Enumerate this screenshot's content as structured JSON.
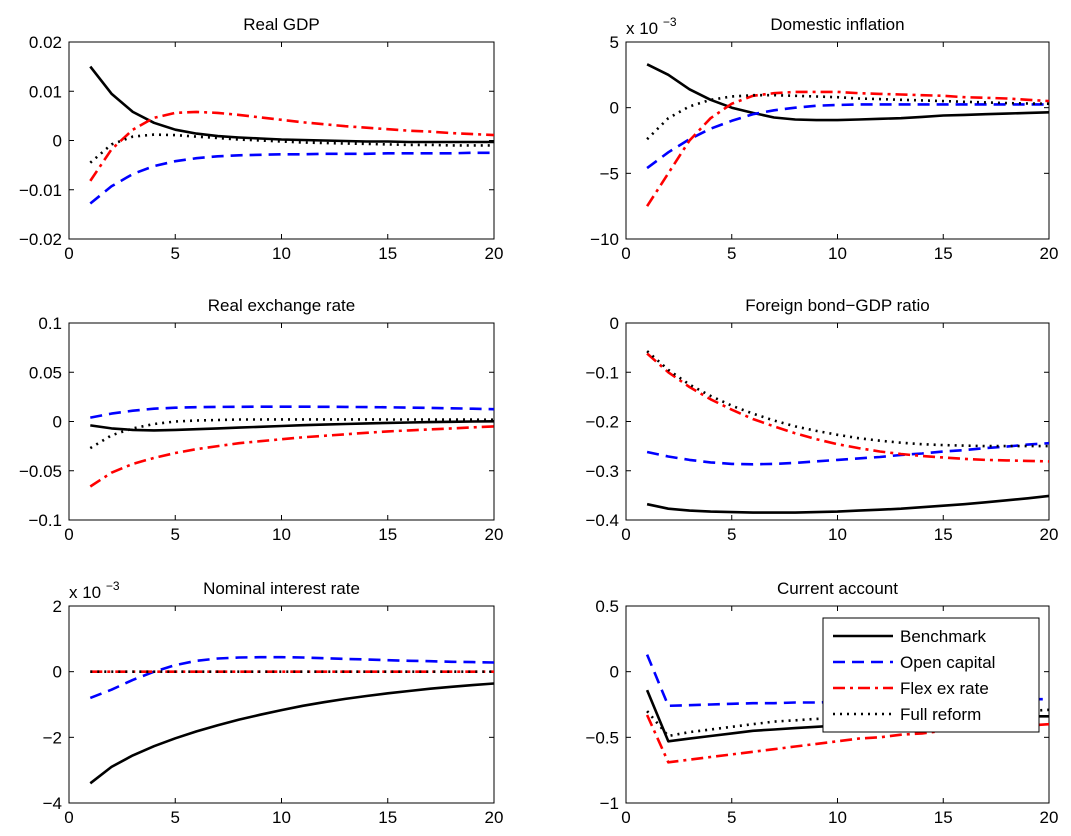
{
  "chart_data": [
    {
      "type": "line",
      "title": "Real GDP",
      "xlim": [
        0,
        20
      ],
      "ylim": [
        -0.02,
        0.02
      ],
      "xticks": [
        0,
        5,
        10,
        15,
        20
      ],
      "yticks": [
        -0.02,
        -0.01,
        0,
        0.01,
        0.02
      ],
      "xtick_labels": [
        "0",
        "5",
        "10",
        "15",
        "20"
      ],
      "ytick_labels": [
        "−0.02",
        "−0.01",
        "0",
        "0.01",
        "0.02"
      ],
      "exponent": "",
      "x": [
        1,
        2,
        3,
        4,
        5,
        6,
        7,
        8,
        9,
        10,
        11,
        12,
        13,
        14,
        15,
        16,
        17,
        18,
        19,
        20
      ],
      "series": [
        {
          "name": "Benchmark",
          "values": [
            0.015,
            0.0095,
            0.0058,
            0.0036,
            0.0022,
            0.0014,
            0.0009,
            0.0006,
            0.0004,
            0.0002,
            0.0001,
            0.0,
            -0.0001,
            -0.0002,
            -0.0002,
            -0.0003,
            -0.0003,
            -0.0003,
            -0.0003,
            -0.0003
          ]
        },
        {
          "name": "Open capital",
          "values": [
            -0.0128,
            -0.0093,
            -0.0068,
            -0.0052,
            -0.0042,
            -0.0036,
            -0.0032,
            -0.003,
            -0.0029,
            -0.0028,
            -0.0028,
            -0.0027,
            -0.0027,
            -0.0027,
            -0.0026,
            -0.0026,
            -0.0026,
            -0.0026,
            -0.0025,
            -0.0025
          ]
        },
        {
          "name": "Flex ex rate",
          "values": [
            -0.0082,
            -0.0018,
            0.0022,
            0.0046,
            0.0056,
            0.0058,
            0.0056,
            0.0052,
            0.0047,
            0.0042,
            0.0037,
            0.0033,
            0.0029,
            0.0026,
            0.0023,
            0.002,
            0.0018,
            0.0015,
            0.0013,
            0.0011
          ]
        },
        {
          "name": "Full reform",
          "values": [
            -0.0045,
            -0.0008,
            0.0008,
            0.0012,
            0.0011,
            0.0008,
            0.0005,
            0.0002,
            0.0,
            -0.0002,
            -0.0004,
            -0.0005,
            -0.0006,
            -0.0007,
            -0.0008,
            -0.0009,
            -0.0009,
            -0.001,
            -0.001,
            -0.001
          ]
        }
      ]
    },
    {
      "type": "line",
      "title": "Domestic inflation",
      "xlim": [
        0,
        20
      ],
      "ylim": [
        -10,
        5
      ],
      "xticks": [
        0,
        5,
        10,
        15,
        20
      ],
      "yticks": [
        -10,
        -5,
        0,
        5
      ],
      "xtick_labels": [
        "0",
        "5",
        "10",
        "15",
        "20"
      ],
      "ytick_labels": [
        "−10",
        "−5",
        "0",
        "5"
      ],
      "exponent": "x 10",
      "exponent_power": "−3",
      "x": [
        1,
        2,
        3,
        4,
        5,
        6,
        7,
        8,
        9,
        10,
        11,
        12,
        13,
        14,
        15,
        16,
        17,
        18,
        19,
        20
      ],
      "series": [
        {
          "name": "Benchmark",
          "values": [
            3.3,
            2.5,
            1.4,
            0.6,
            0.0,
            -0.4,
            -0.75,
            -0.9,
            -0.95,
            -0.95,
            -0.9,
            -0.85,
            -0.8,
            -0.7,
            -0.6,
            -0.55,
            -0.5,
            -0.45,
            -0.4,
            -0.35
          ]
        },
        {
          "name": "Open capital",
          "values": [
            -4.6,
            -3.4,
            -2.4,
            -1.6,
            -1.0,
            -0.5,
            -0.2,
            0.0,
            0.15,
            0.2,
            0.25,
            0.25,
            0.25,
            0.25,
            0.25,
            0.25,
            0.25,
            0.25,
            0.25,
            0.25
          ]
        },
        {
          "name": "Flex ex rate",
          "values": [
            -7.5,
            -5.0,
            -2.5,
            -0.8,
            0.3,
            0.9,
            1.1,
            1.2,
            1.2,
            1.2,
            1.1,
            1.05,
            1.0,
            0.95,
            0.9,
            0.8,
            0.75,
            0.7,
            0.6,
            0.5
          ]
        },
        {
          "name": "Full reform",
          "values": [
            -2.4,
            -0.8,
            0.1,
            0.6,
            0.85,
            0.95,
            0.95,
            0.9,
            0.85,
            0.8,
            0.7,
            0.65,
            0.6,
            0.55,
            0.5,
            0.45,
            0.4,
            0.35,
            0.32,
            0.3
          ]
        }
      ]
    },
    {
      "type": "line",
      "title": "Real exchange rate",
      "xlim": [
        0,
        20
      ],
      "ylim": [
        -0.1,
        0.1
      ],
      "xticks": [
        0,
        5,
        10,
        15,
        20
      ],
      "yticks": [
        -0.1,
        -0.05,
        0,
        0.05,
        0.1
      ],
      "xtick_labels": [
        "0",
        "5",
        "10",
        "15",
        "20"
      ],
      "ytick_labels": [
        "−0.1",
        "−0.05",
        "0",
        "0.05",
        "0.1"
      ],
      "exponent": "",
      "x": [
        1,
        2,
        3,
        4,
        5,
        6,
        7,
        8,
        9,
        10,
        11,
        12,
        13,
        14,
        15,
        16,
        17,
        18,
        19,
        20
      ],
      "series": [
        {
          "name": "Benchmark",
          "values": [
            -0.004,
            -0.007,
            -0.0085,
            -0.009,
            -0.0085,
            -0.0078,
            -0.007,
            -0.0062,
            -0.0054,
            -0.0046,
            -0.0038,
            -0.0031,
            -0.0025,
            -0.0019,
            -0.0014,
            -0.001,
            -0.0006,
            -0.0003,
            0.0,
            0.0002
          ]
        },
        {
          "name": "Open capital",
          "values": [
            0.004,
            0.008,
            0.011,
            0.013,
            0.014,
            0.0145,
            0.0148,
            0.0149,
            0.015,
            0.015,
            0.015,
            0.0149,
            0.0148,
            0.0146,
            0.0144,
            0.0141,
            0.0138,
            0.0134,
            0.013,
            0.0125
          ]
        },
        {
          "name": "Flex ex rate",
          "values": [
            -0.066,
            -0.052,
            -0.043,
            -0.037,
            -0.032,
            -0.028,
            -0.025,
            -0.022,
            -0.02,
            -0.018,
            -0.016,
            -0.0145,
            -0.013,
            -0.0115,
            -0.01,
            -0.009,
            -0.008,
            -0.007,
            -0.006,
            -0.005
          ]
        },
        {
          "name": "Full reform",
          "values": [
            -0.027,
            -0.014,
            -0.007,
            -0.0025,
            0.0,
            0.001,
            0.0015,
            0.002,
            0.002,
            0.0021,
            0.0021,
            0.0021,
            0.0021,
            0.0021,
            0.002,
            0.002,
            0.002,
            0.0019,
            0.0019,
            0.0018
          ]
        }
      ]
    },
    {
      "type": "line",
      "title": "Foreign bond−GDP ratio",
      "xlim": [
        0,
        20
      ],
      "ylim": [
        -0.4,
        0
      ],
      "xticks": [
        0,
        5,
        10,
        15,
        20
      ],
      "yticks": [
        -0.4,
        -0.3,
        -0.2,
        -0.1,
        0
      ],
      "xtick_labels": [
        "0",
        "5",
        "10",
        "15",
        "20"
      ],
      "ytick_labels": [
        "−0.4",
        "−0.3",
        "−0.2",
        "−0.1",
        "0"
      ],
      "exponent": "",
      "x": [
        1,
        2,
        3,
        4,
        5,
        6,
        7,
        8,
        9,
        10,
        11,
        12,
        13,
        14,
        15,
        16,
        17,
        18,
        19,
        20
      ],
      "series": [
        {
          "name": "Benchmark",
          "values": [
            -0.368,
            -0.377,
            -0.381,
            -0.383,
            -0.384,
            -0.385,
            -0.385,
            -0.385,
            -0.384,
            -0.383,
            -0.381,
            -0.379,
            -0.377,
            -0.374,
            -0.371,
            -0.368,
            -0.364,
            -0.36,
            -0.356,
            -0.351
          ]
        },
        {
          "name": "Open capital",
          "values": [
            -0.262,
            -0.271,
            -0.278,
            -0.283,
            -0.286,
            -0.287,
            -0.286,
            -0.284,
            -0.281,
            -0.278,
            -0.275,
            -0.272,
            -0.268,
            -0.265,
            -0.261,
            -0.258,
            -0.254,
            -0.251,
            -0.247,
            -0.244
          ]
        },
        {
          "name": "Flex ex rate",
          "values": [
            -0.062,
            -0.1,
            -0.13,
            -0.155,
            -0.176,
            -0.195,
            -0.21,
            -0.224,
            -0.236,
            -0.246,
            -0.254,
            -0.261,
            -0.266,
            -0.27,
            -0.273,
            -0.276,
            -0.278,
            -0.279,
            -0.28,
            -0.281
          ]
        },
        {
          "name": "Full reform",
          "values": [
            -0.057,
            -0.095,
            -0.125,
            -0.148,
            -0.168,
            -0.184,
            -0.198,
            -0.21,
            -0.219,
            -0.227,
            -0.234,
            -0.239,
            -0.243,
            -0.246,
            -0.248,
            -0.249,
            -0.25,
            -0.25,
            -0.25,
            -0.25
          ]
        }
      ]
    },
    {
      "type": "line",
      "title": "Nominal interest rate",
      "xlim": [
        0,
        20
      ],
      "ylim": [
        -4,
        2
      ],
      "xticks": [
        0,
        5,
        10,
        15,
        20
      ],
      "yticks": [
        -4,
        -2,
        0,
        2
      ],
      "xtick_labels": [
        "0",
        "5",
        "10",
        "15",
        "20"
      ],
      "ytick_labels": [
        "−4",
        "−2",
        "0",
        "2"
      ],
      "exponent": "x 10",
      "exponent_power": "−3",
      "x": [
        1,
        2,
        3,
        4,
        5,
        6,
        7,
        8,
        9,
        10,
        11,
        12,
        13,
        14,
        15,
        16,
        17,
        18,
        19,
        20
      ],
      "series": [
        {
          "name": "Benchmark",
          "values": [
            -3.4,
            -2.9,
            -2.55,
            -2.27,
            -2.03,
            -1.82,
            -1.63,
            -1.46,
            -1.31,
            -1.17,
            -1.04,
            -0.93,
            -0.83,
            -0.74,
            -0.66,
            -0.59,
            -0.52,
            -0.46,
            -0.41,
            -0.36
          ]
        },
        {
          "name": "Open capital",
          "values": [
            -0.8,
            -0.55,
            -0.25,
            0.0,
            0.2,
            0.33,
            0.4,
            0.43,
            0.44,
            0.44,
            0.43,
            0.41,
            0.39,
            0.37,
            0.35,
            0.33,
            0.32,
            0.3,
            0.29,
            0.28
          ]
        },
        {
          "name": "Flex ex rate",
          "values": [
            0,
            0,
            0,
            0,
            0,
            0,
            0,
            0,
            0,
            0,
            0,
            0,
            0,
            0,
            0,
            0,
            0,
            0,
            0,
            0
          ]
        },
        {
          "name": "Full reform",
          "values": [
            0,
            0,
            0,
            0,
            0,
            0,
            0,
            0,
            0,
            0,
            0,
            0,
            0,
            0,
            0,
            0,
            0,
            0,
            0,
            0
          ]
        }
      ]
    },
    {
      "type": "line",
      "title": "Current account",
      "xlim": [
        0,
        20
      ],
      "ylim": [
        -1,
        0.5
      ],
      "xticks": [
        0,
        5,
        10,
        15,
        20
      ],
      "yticks": [
        -1,
        -0.5,
        0,
        0.5
      ],
      "xtick_labels": [
        "0",
        "5",
        "10",
        "15",
        "20"
      ],
      "ytick_labels": [
        "−1",
        "−0.5",
        "0",
        "0.5"
      ],
      "exponent": "",
      "legend": {
        "position": "top-right",
        "entries": [
          "Benchmark",
          "Open capital",
          "Flex ex rate",
          "Full reform"
        ]
      },
      "x": [
        1,
        2,
        3,
        4,
        5,
        6,
        7,
        8,
        9,
        10,
        11,
        12,
        13,
        14,
        15,
        16,
        17,
        18,
        19,
        20
      ],
      "series": [
        {
          "name": "Benchmark",
          "values": [
            -0.14,
            -0.53,
            -0.51,
            -0.49,
            -0.47,
            -0.45,
            -0.44,
            -0.43,
            -0.42,
            -0.41,
            -0.4,
            -0.39,
            -0.38,
            -0.37,
            -0.37,
            -0.36,
            -0.35,
            -0.35,
            -0.34,
            -0.34
          ]
        },
        {
          "name": "Open capital",
          "values": [
            0.13,
            -0.26,
            -0.255,
            -0.25,
            -0.245,
            -0.24,
            -0.24,
            -0.235,
            -0.235,
            -0.23,
            -0.23,
            -0.225,
            -0.225,
            -0.22,
            -0.22,
            -0.22,
            -0.215,
            -0.215,
            -0.21,
            -0.21
          ]
        },
        {
          "name": "Flex ex rate",
          "values": [
            -0.33,
            -0.69,
            -0.67,
            -0.65,
            -0.63,
            -0.61,
            -0.59,
            -0.57,
            -0.55,
            -0.53,
            -0.51,
            -0.5,
            -0.48,
            -0.47,
            -0.45,
            -0.44,
            -0.43,
            -0.42,
            -0.41,
            -0.4
          ]
        },
        {
          "name": "Full reform",
          "values": [
            -0.3,
            -0.49,
            -0.46,
            -0.44,
            -0.42,
            -0.4,
            -0.38,
            -0.37,
            -0.36,
            -0.35,
            -0.34,
            -0.33,
            -0.32,
            -0.32,
            -0.31,
            -0.31,
            -0.3,
            -0.3,
            -0.3,
            -0.29
          ]
        }
      ]
    }
  ],
  "series_styles": [
    {
      "name": "Benchmark",
      "color": "#000000",
      "dash": "none"
    },
    {
      "name": "Open capital",
      "color": "#0000ff",
      "dash": "12,7"
    },
    {
      "name": "Flex ex rate",
      "color": "#ff0000",
      "dash": "12,5,3,5"
    },
    {
      "name": "Full reform",
      "color": "#000000",
      "dash": "2,5"
    }
  ]
}
